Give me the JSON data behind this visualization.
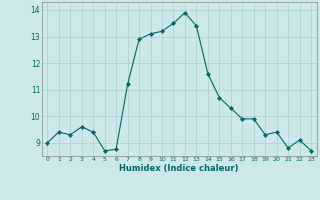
{
  "x": [
    0,
    1,
    2,
    3,
    4,
    5,
    6,
    7,
    8,
    9,
    10,
    11,
    12,
    13,
    14,
    15,
    16,
    17,
    18,
    19,
    20,
    21,
    22,
    23
  ],
  "y": [
    9.0,
    9.4,
    9.3,
    9.6,
    9.4,
    8.7,
    8.75,
    11.2,
    12.9,
    13.1,
    13.2,
    13.5,
    13.9,
    13.4,
    11.6,
    10.7,
    10.3,
    9.9,
    9.9,
    9.3,
    9.4,
    8.8,
    9.1,
    8.7
  ],
  "xlim": [
    -0.5,
    23.5
  ],
  "ylim": [
    8.5,
    14.3
  ],
  "yticks": [
    9,
    10,
    11,
    12,
    13,
    14
  ],
  "xticks": [
    0,
    1,
    2,
    3,
    4,
    5,
    6,
    7,
    8,
    9,
    10,
    11,
    12,
    13,
    14,
    15,
    16,
    17,
    18,
    19,
    20,
    21,
    22,
    23
  ],
  "xlabel": "Humidex (Indice chaleur)",
  "line_color": "#006868",
  "marker_color": "#006868",
  "bg_color": "#cce8e8",
  "grid_color": "#aacfcf",
  "tick_color": "#006868"
}
